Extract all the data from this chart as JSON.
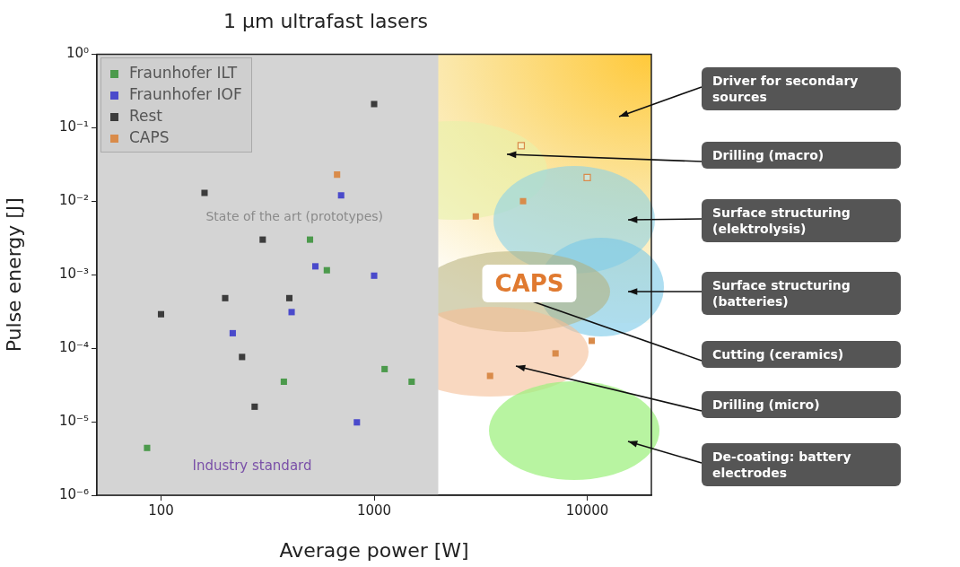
{
  "chart_data": {
    "type": "scatter",
    "title": "1 µm ultrafast lasers",
    "xlabel": "Average power [W]",
    "ylabel": "Pulse energy [J]",
    "log": "xy",
    "xlim": [
      50,
      20000
    ],
    "ylim": [
      1e-06,
      1
    ],
    "xticks": [
      100,
      1000,
      10000
    ],
    "yticks": [
      {
        "value": 1,
        "label": "10⁰"
      },
      {
        "value": 0.1,
        "label": "10⁻¹"
      },
      {
        "value": 0.01,
        "label": "10⁻²"
      },
      {
        "value": 0.001,
        "label": "10⁻³"
      },
      {
        "value": 0.0001,
        "label": "10⁻⁴"
      },
      {
        "value": 1e-05,
        "label": "10⁻⁵"
      },
      {
        "value": 1e-06,
        "label": "10⁻⁶"
      }
    ],
    "marker": "square",
    "legend": "top left",
    "series": [
      {
        "name": "Fraunhofer ILT",
        "color": "#4c9a4c",
        "x": [
          86,
          377,
          500,
          600,
          1120,
          1500
        ],
        "values": [
          4.4e-06,
          3.5e-05,
          0.003,
          0.00115,
          5.2e-05,
          3.5e-05
        ]
      },
      {
        "name": "Fraunhofer IOF",
        "color": "#4a4acb",
        "x": [
          217,
          410,
          530,
          700,
          830,
          1000
        ],
        "values": [
          0.00016,
          0.00031,
          0.0013,
          0.012,
          9.8e-06,
          0.00097
        ]
      },
      {
        "name": "Rest",
        "color": "#3c3c3c",
        "x": [
          100,
          160,
          200,
          240,
          275,
          300,
          400,
          1000
        ],
        "values": [
          0.00029,
          0.013,
          0.00048,
          7.6e-05,
          1.6e-05,
          0.003,
          0.00048,
          0.21
        ]
      },
      {
        "name": "CAPS",
        "color": "#d98b4a",
        "x": [
          670,
          3000,
          3500,
          5000,
          7100,
          10500
        ],
        "values": [
          0.023,
          0.0062,
          4.2e-05,
          0.01,
          8.5e-05,
          0.000126
        ]
      },
      {
        "color": "#d98b4a",
        "x": [
          4900,
          10000
        ],
        "values": [
          0.057,
          0.021
        ]
      }
    ],
    "bands": [
      {
        "axis": "x",
        "from": 50,
        "to": 2000,
        "label": "State of the art (prototypes)",
        "color": "#d4d4d4"
      }
    ],
    "annotations": [
      "Industry standard",
      "CAPS",
      "Driver for secondary sources",
      "Drilling (macro)",
      "Surface structuring (elektrolysis)",
      "Surface structuring (batteries)",
      "Cutting (ceramics)",
      "Drilling (micro)",
      "De-coating: battery electrodes"
    ]
  }
}
